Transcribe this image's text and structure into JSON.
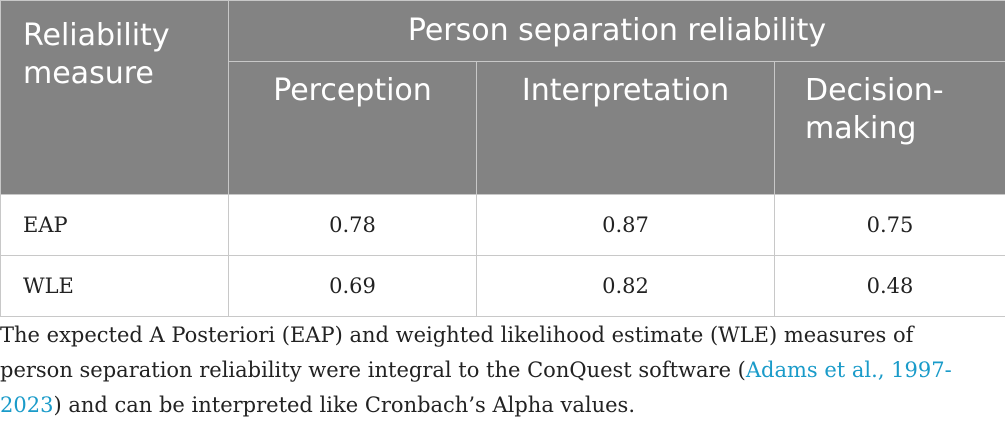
{
  "table": {
    "corner_header": "Reliability measure",
    "group_header": "Person separation reliability",
    "columns": [
      "Perception",
      "Interpretation",
      "Decision-making"
    ],
    "rows": [
      {
        "label": "EAP",
        "values": [
          "0.78",
          "0.87",
          "0.75"
        ]
      },
      {
        "label": "WLE",
        "values": [
          "0.69",
          "0.82",
          "0.48"
        ]
      }
    ]
  },
  "footnote": {
    "text_before": "The expected A Posteriori (EAP) and weighted likelihood estimate (WLE) measures of person separation reliability were integral to the ConQuest software (",
    "link_text": "Adams et al., 1997-2023",
    "text_after": ") and can be interpreted like Cronbach’s Alpha values."
  },
  "colors": {
    "header_bg": "#838383",
    "border": "#c8c8c8",
    "link": "#1a9bc9"
  }
}
